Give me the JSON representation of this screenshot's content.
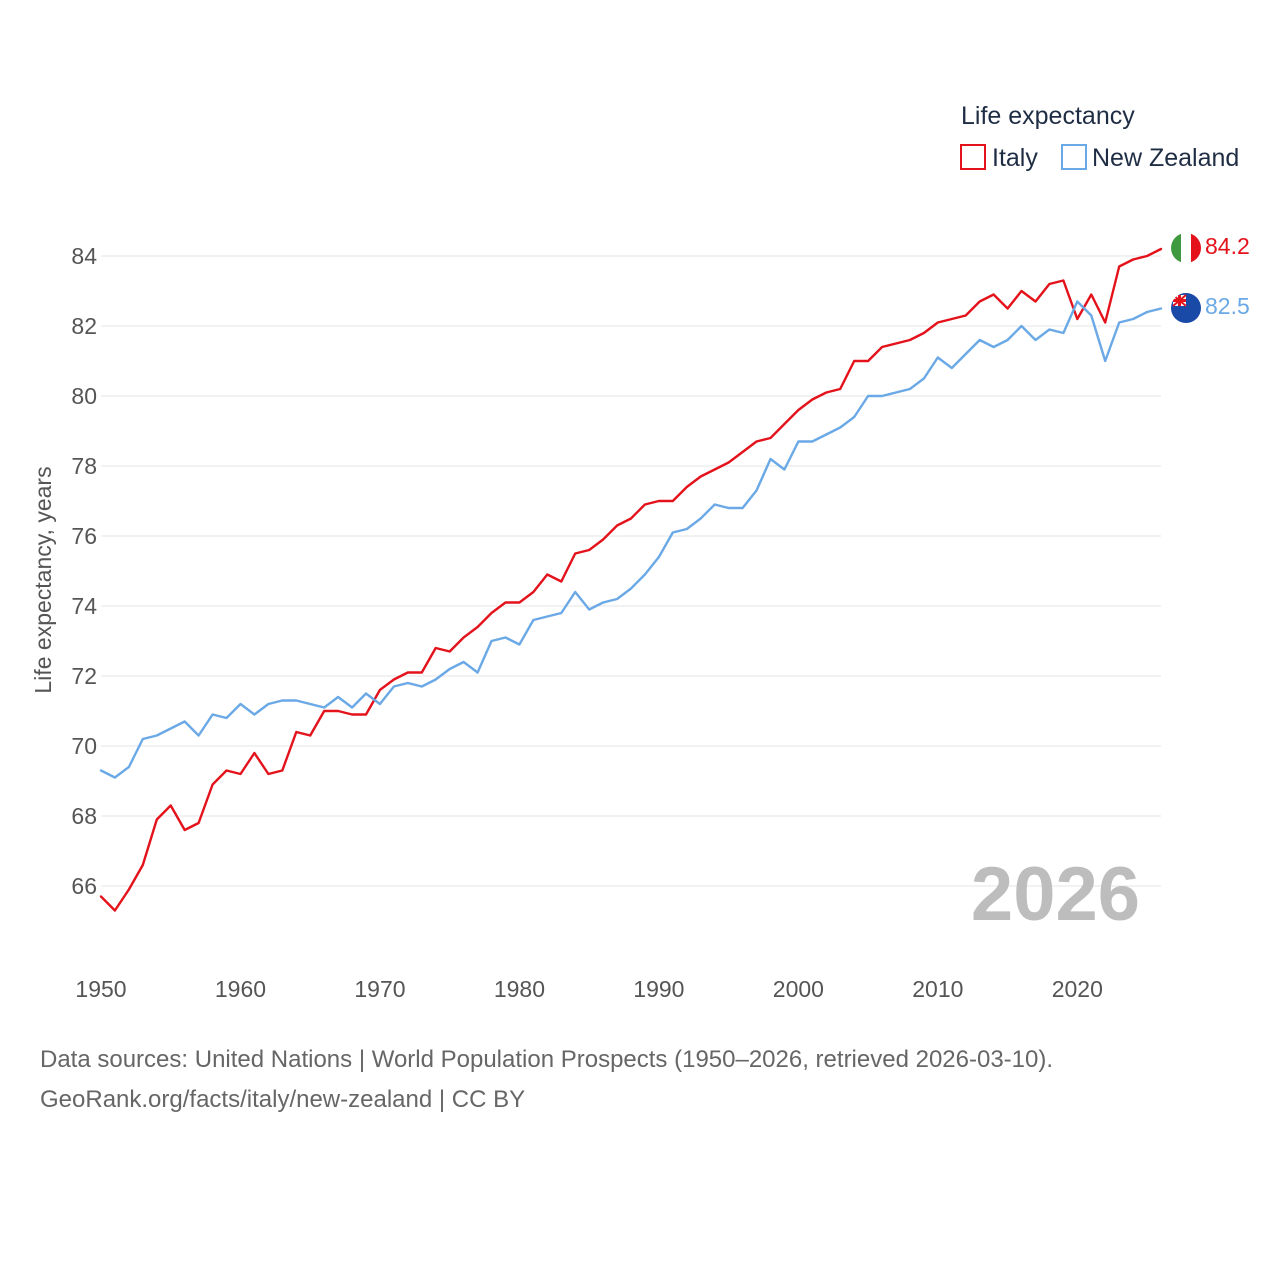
{
  "chart_data": {
    "type": "line",
    "title": "Life expectancy",
    "ylabel": "Life expectancy, years",
    "xlabel": "",
    "xlim": [
      1950,
      2026
    ],
    "ylim": [
      64.5,
      85
    ],
    "x_ticks": [
      1950,
      1960,
      1970,
      1980,
      1990,
      2000,
      2010,
      2020
    ],
    "y_ticks": [
      66,
      68,
      70,
      72,
      74,
      76,
      78,
      80,
      82,
      84
    ],
    "grid": true,
    "legend_position": "top-right",
    "current_year_label": "2026",
    "x": [
      1950,
      1951,
      1952,
      1953,
      1954,
      1955,
      1956,
      1957,
      1958,
      1959,
      1960,
      1961,
      1962,
      1963,
      1964,
      1965,
      1966,
      1967,
      1968,
      1969,
      1970,
      1971,
      1972,
      1973,
      1974,
      1975,
      1976,
      1977,
      1978,
      1979,
      1980,
      1981,
      1982,
      1983,
      1984,
      1985,
      1986,
      1987,
      1988,
      1989,
      1990,
      1991,
      1992,
      1993,
      1994,
      1995,
      1996,
      1997,
      1998,
      1999,
      2000,
      2001,
      2002,
      2003,
      2004,
      2005,
      2006,
      2007,
      2008,
      2009,
      2010,
      2011,
      2012,
      2013,
      2014,
      2015,
      2016,
      2017,
      2018,
      2019,
      2020,
      2021,
      2022,
      2023,
      2024,
      2025,
      2026
    ],
    "series": [
      {
        "name": "Italy",
        "color": "#e3121b",
        "end_label": "84.2",
        "flag": "italy-flag",
        "values": [
          65.7,
          65.3,
          65.9,
          66.6,
          67.9,
          68.3,
          67.6,
          67.8,
          68.9,
          69.3,
          69.2,
          69.8,
          69.2,
          69.3,
          70.4,
          70.3,
          71.0,
          71.0,
          70.9,
          70.9,
          71.6,
          71.9,
          72.1,
          72.1,
          72.8,
          72.7,
          73.1,
          73.4,
          73.8,
          74.1,
          74.1,
          74.4,
          74.9,
          74.7,
          75.5,
          75.6,
          75.9,
          76.3,
          76.5,
          76.9,
          77.0,
          77.0,
          77.4,
          77.7,
          77.9,
          78.1,
          78.4,
          78.7,
          78.8,
          79.2,
          79.6,
          79.9,
          80.1,
          80.2,
          81.0,
          81.0,
          81.4,
          81.5,
          81.6,
          81.8,
          82.1,
          82.2,
          82.3,
          82.7,
          82.9,
          82.5,
          83.0,
          82.7,
          83.2,
          83.3,
          82.2,
          82.9,
          82.1,
          83.7,
          83.9,
          84.0,
          84.2
        ]
      },
      {
        "name": "New Zealand",
        "color": "#6aa9e6",
        "end_label": "82.5",
        "flag": "new-zealand-flag",
        "values": [
          69.3,
          69.1,
          69.4,
          70.2,
          70.3,
          70.5,
          70.7,
          70.3,
          70.9,
          70.8,
          71.2,
          70.9,
          71.2,
          71.3,
          71.3,
          71.2,
          71.1,
          71.4,
          71.1,
          71.5,
          71.2,
          71.7,
          71.8,
          71.7,
          71.9,
          72.2,
          72.4,
          72.1,
          73.0,
          73.1,
          72.9,
          73.6,
          73.7,
          73.8,
          74.4,
          73.9,
          74.1,
          74.2,
          74.5,
          74.9,
          75.4,
          76.1,
          76.2,
          76.5,
          76.9,
          76.8,
          76.8,
          77.3,
          78.2,
          77.9,
          78.7,
          78.7,
          78.9,
          79.1,
          79.4,
          80.0,
          80.0,
          80.1,
          80.2,
          80.5,
          81.1,
          80.8,
          81.2,
          81.6,
          81.4,
          81.6,
          82.0,
          81.6,
          81.9,
          81.8,
          82.7,
          82.3,
          81.0,
          82.1,
          82.2,
          82.4,
          82.5
        ]
      }
    ]
  },
  "footer": {
    "sources": "Data sources: United Nations | World Population Prospects (1950–2026, retrieved 2026-03-10).",
    "credit": "GeoRank.org/facts/italy/new-zealand | CC BY"
  }
}
